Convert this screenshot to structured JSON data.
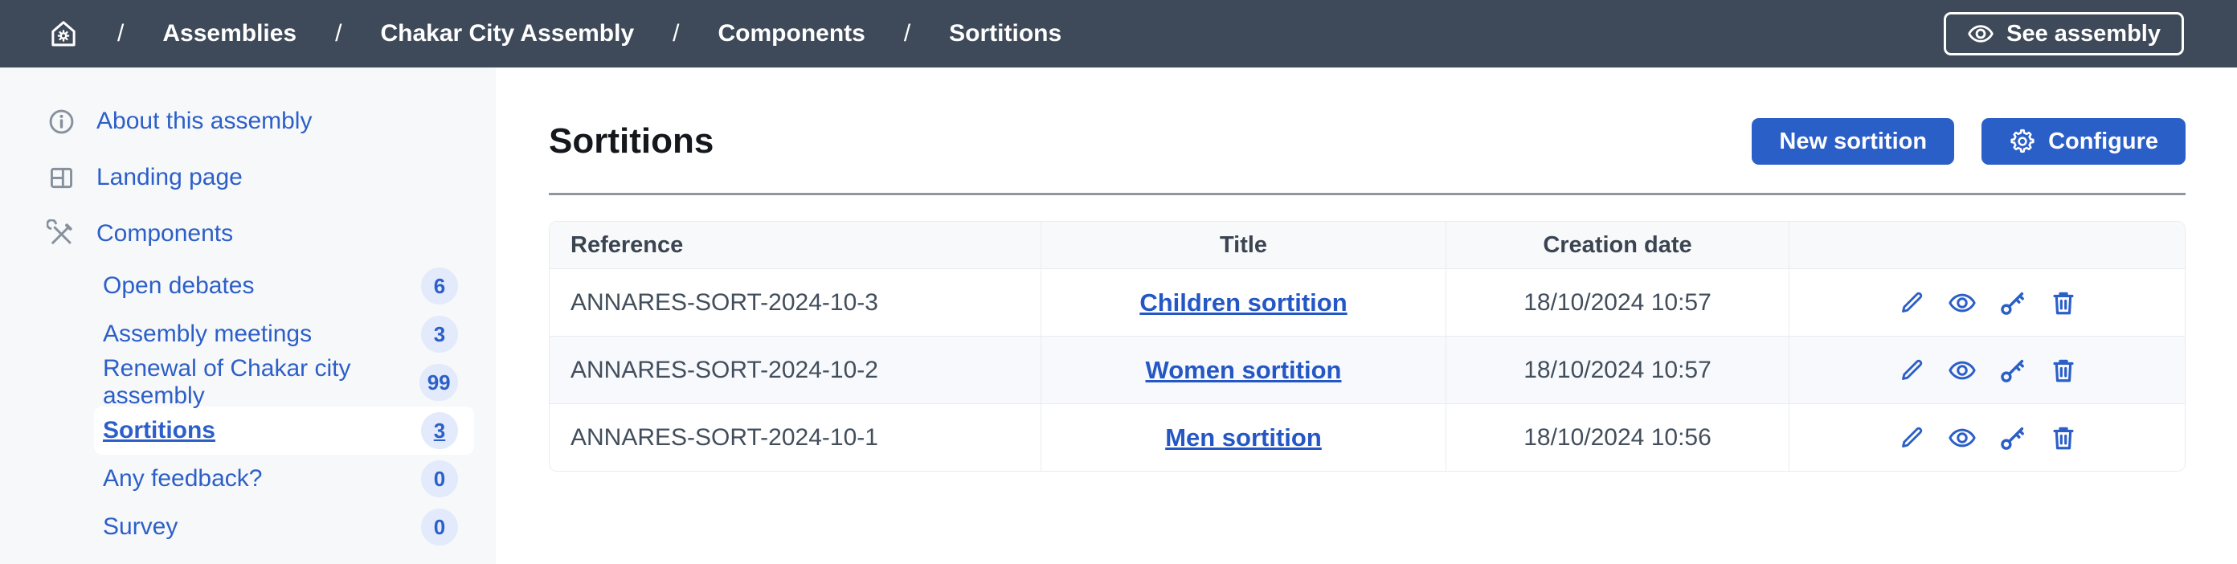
{
  "colors": {
    "topbar_bg": "#3e4a59",
    "primary_blue": "#2b5fc8",
    "link_blue": "#2457c5",
    "sidebar_bg": "#f7f8fa",
    "badge_bg": "#e2eafb",
    "table_header_bg": "#f8f9fb",
    "row_alt_bg": "#f7f9fc",
    "border": "#e8ecf0",
    "icon_gray": "#87919e"
  },
  "topbar": {
    "breadcrumb": [
      "Assemblies",
      "Chakar City Assembly",
      "Components",
      "Sortitions"
    ],
    "see_assembly_label": "See assembly"
  },
  "sidebar": {
    "items": [
      {
        "label": "About this assembly",
        "icon": "info-icon"
      },
      {
        "label": "Landing page",
        "icon": "layout-icon"
      },
      {
        "label": "Components",
        "icon": "tools-icon"
      }
    ],
    "subitems": [
      {
        "label": "Open debates",
        "badge": "6",
        "selected": false
      },
      {
        "label": "Assembly meetings",
        "badge": "3",
        "selected": false
      },
      {
        "label": "Renewal of Chakar city assembly",
        "badge": "99",
        "selected": false
      },
      {
        "label": "Sortitions",
        "badge": "3",
        "selected": true
      },
      {
        "label": "Any feedback?",
        "badge": "0",
        "selected": false
      },
      {
        "label": "Survey",
        "badge": "0",
        "selected": false
      }
    ]
  },
  "main": {
    "title": "Sortitions",
    "new_button_label": "New sortition",
    "configure_button_label": "Configure",
    "table": {
      "headers": [
        "Reference",
        "Title",
        "Creation date",
        ""
      ],
      "rows": [
        {
          "reference": "ANNARES-SORT-2024-10-3",
          "title": "Children sortition",
          "date": "18/10/2024 10:57"
        },
        {
          "reference": "ANNARES-SORT-2024-10-2",
          "title": "Women sortition",
          "date": "18/10/2024 10:57"
        },
        {
          "reference": "ANNARES-SORT-2024-10-1",
          "title": "Men sortition",
          "date": "18/10/2024 10:56"
        }
      ],
      "row_actions": [
        {
          "name": "edit",
          "icon": "pencil-icon"
        },
        {
          "name": "preview",
          "icon": "eye-icon"
        },
        {
          "name": "permissions",
          "icon": "key-icon"
        },
        {
          "name": "delete",
          "icon": "trash-icon"
        }
      ]
    }
  }
}
